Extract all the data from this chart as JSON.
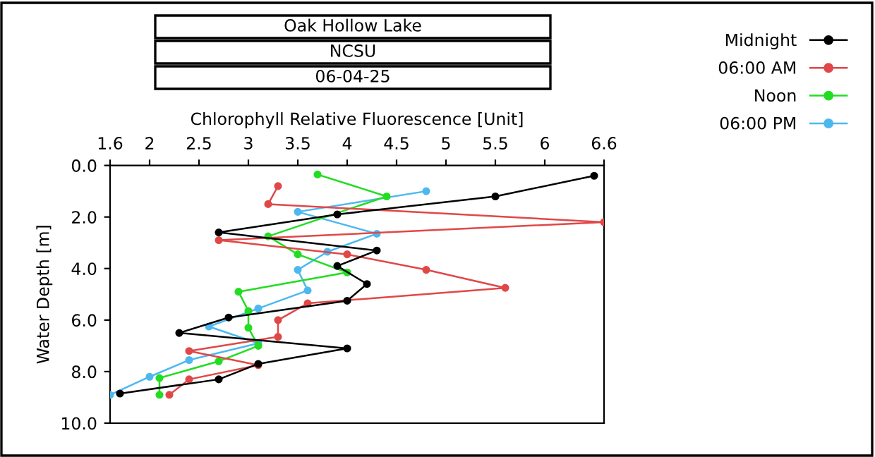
{
  "chart_data": {
    "type": "line",
    "title": "Oak Hollow Lake",
    "subtitle": "NCSU",
    "annotations": [
      "06-04-25"
    ],
    "xlabel": "Chlorophyll Relative Fluorescence [Unit]",
    "ylabel": "Water Depth [m]",
    "xlim": [
      1.6,
      6.6
    ],
    "xticks": [
      1.6,
      2,
      2.5,
      3,
      3.5,
      4,
      4.5,
      5,
      5.5,
      6,
      6.6
    ],
    "ylim": [
      10,
      0
    ],
    "yticks": [
      {
        "value": 0,
        "label": "0.0"
      },
      {
        "value": 2,
        "label": "2.0"
      },
      {
        "value": 4,
        "label": "4.0"
      },
      {
        "value": 6,
        "label": "6.0"
      },
      {
        "value": 8,
        "label": "8.0"
      },
      {
        "value": 10,
        "label": "10.0"
      }
    ],
    "grid": false,
    "legend": "right",
    "marker": "circle",
    "line_style": "solid",
    "series": [
      {
        "name": "Midnight",
        "color": "#000000",
        "x": [
          6.5,
          5.5,
          3.9,
          2.7,
          4.3,
          3.9,
          4.2,
          4.0,
          2.8,
          2.3,
          4.0,
          3.1,
          2.7,
          1.7
        ],
        "values": [
          0.4,
          1.2,
          1.9,
          2.6,
          3.3,
          3.9,
          4.6,
          5.25,
          5.9,
          6.5,
          7.1,
          7.7,
          8.3,
          8.85
        ]
      },
      {
        "name": "06:00 AM",
        "color": "#e04848",
        "x": [
          3.3,
          3.2,
          6.6,
          2.7,
          4.0,
          4.8,
          5.6,
          3.6,
          3.3,
          3.3,
          2.4,
          3.1,
          2.4,
          2.2
        ],
        "values": [
          0.8,
          1.5,
          2.2,
          2.9,
          3.45,
          4.05,
          4.75,
          5.35,
          6.0,
          6.65,
          7.2,
          7.75,
          8.3,
          8.9
        ]
      },
      {
        "name": "Noon",
        "color": "#22dd22",
        "x": [
          3.7,
          4.4,
          3.2,
          3.5,
          4.0,
          2.9,
          3.0,
          3.0,
          3.1,
          2.7,
          2.1,
          2.1
        ],
        "values": [
          0.35,
          1.2,
          2.75,
          3.45,
          4.15,
          4.9,
          5.65,
          6.3,
          7.0,
          7.6,
          8.25,
          8.9
        ]
      },
      {
        "name": "06:00 PM",
        "color": "#4db8f0",
        "x": [
          4.8,
          3.5,
          4.3,
          3.8,
          3.5,
          3.6,
          3.1,
          2.6,
          3.1,
          2.4,
          2.0,
          1.6
        ],
        "values": [
          1.0,
          1.8,
          2.65,
          3.35,
          4.05,
          4.85,
          5.55,
          6.25,
          6.9,
          7.55,
          8.2,
          8.9
        ]
      }
    ]
  }
}
